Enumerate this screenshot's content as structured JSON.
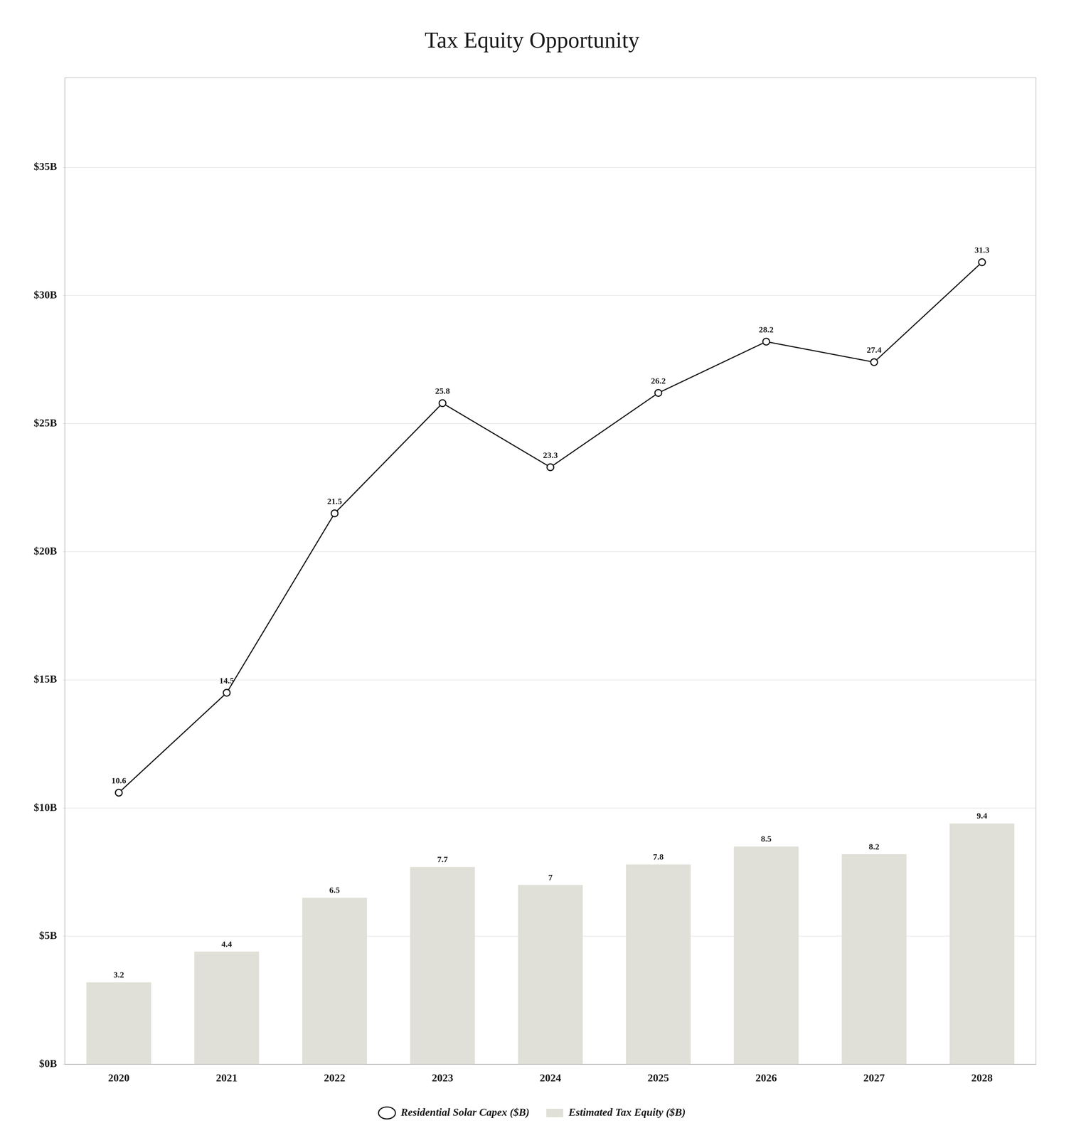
{
  "chart_data": {
    "type": "bar",
    "title": "Tax Equity Opportunity",
    "categories": [
      "2020",
      "2021",
      "2022",
      "2023",
      "2024",
      "2025",
      "2026",
      "2027",
      "2028"
    ],
    "series": [
      {
        "name": "Estimated Tax Equity ($B)",
        "type": "bar",
        "color": "#e0e0d8",
        "values": [
          3.2,
          4.4,
          6.5,
          7.7,
          7.0,
          7.8,
          8.5,
          8.2,
          9.4
        ]
      },
      {
        "name": "Residential Solar Capex ($B)",
        "type": "line",
        "color": "#1a1a1a",
        "marker": "circle",
        "values": [
          10.6,
          14.5,
          21.5,
          25.8,
          23.3,
          26.2,
          28.2,
          27.4,
          31.3
        ]
      }
    ],
    "ylim": [
      0,
      38.5
    ],
    "yticks": [
      {
        "value": 0,
        "label": "$0B"
      },
      {
        "value": 5,
        "label": "$5B"
      },
      {
        "value": 10,
        "label": "$10B"
      },
      {
        "value": 15,
        "label": "$15B"
      },
      {
        "value": 20,
        "label": "$20B"
      },
      {
        "value": 25,
        "label": "$25B"
      },
      {
        "value": 30,
        "label": "$30B"
      },
      {
        "value": 35,
        "label": "$35B"
      }
    ],
    "grid": true,
    "legend": "bottom",
    "data_labels": true
  }
}
